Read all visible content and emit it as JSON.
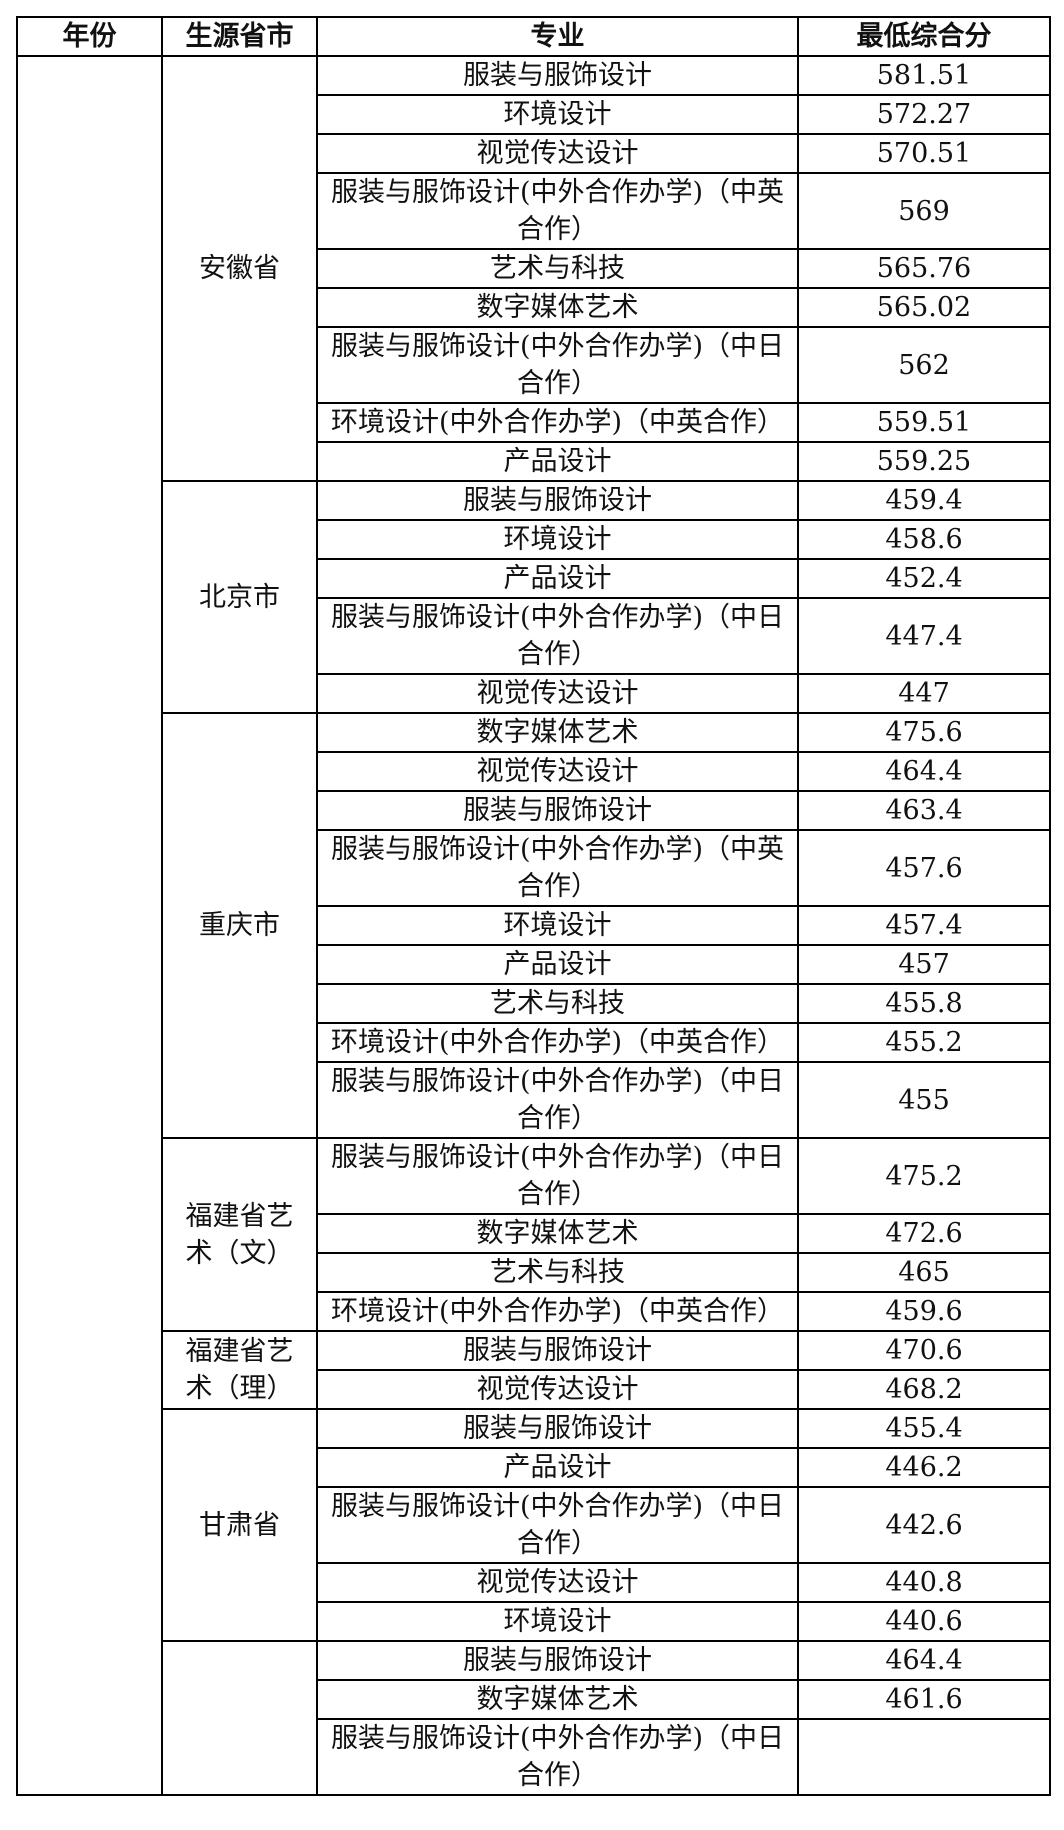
{
  "header": {
    "year": "年份",
    "province": "生源省市",
    "major": "专业",
    "score": "最低综合分"
  },
  "groups": [
    {
      "province": "安徽省",
      "rows": [
        {
          "major": "服装与服饰设计",
          "score": "581.51"
        },
        {
          "major": "环境设计",
          "score": "572.27"
        },
        {
          "major": "视觉传达设计",
          "score": "570.51"
        },
        {
          "major": "服装与服饰设计(中外合作办学)（中英合作）",
          "score": "569"
        },
        {
          "major": "艺术与科技",
          "score": "565.76"
        },
        {
          "major": "数字媒体艺术",
          "score": "565.02"
        },
        {
          "major": "服装与服饰设计(中外合作办学)（中日合作）",
          "score": "562"
        },
        {
          "major": "环境设计(中外合作办学)（中英合作）",
          "score": "559.51"
        },
        {
          "major": "产品设计",
          "score": "559.25"
        }
      ]
    },
    {
      "province": "北京市",
      "rows": [
        {
          "major": "服装与服饰设计",
          "score": "459.4"
        },
        {
          "major": "环境设计",
          "score": "458.6"
        },
        {
          "major": "产品设计",
          "score": "452.4"
        },
        {
          "major": "服装与服饰设计(中外合作办学)（中日合作）",
          "score": "447.4"
        },
        {
          "major": "视觉传达设计",
          "score": "447"
        }
      ]
    },
    {
      "province": "重庆市",
      "rows": [
        {
          "major": "数字媒体艺术",
          "score": "475.6"
        },
        {
          "major": "视觉传达设计",
          "score": "464.4"
        },
        {
          "major": "服装与服饰设计",
          "score": "463.4"
        },
        {
          "major": "服装与服饰设计(中外合作办学)（中英合作）",
          "score": "457.6"
        },
        {
          "major": "环境设计",
          "score": "457.4"
        },
        {
          "major": "产品设计",
          "score": "457"
        },
        {
          "major": "艺术与科技",
          "score": "455.8"
        },
        {
          "major": "环境设计(中外合作办学)（中英合作）",
          "score": "455.2"
        },
        {
          "major": "服装与服饰设计(中外合作办学)（中日合作）",
          "score": "455"
        }
      ]
    },
    {
      "province": "福建省艺术（文）",
      "rows": [
        {
          "major": "服装与服饰设计(中外合作办学)（中日合作）",
          "score": "475.2"
        },
        {
          "major": "数字媒体艺术",
          "score": "472.6"
        },
        {
          "major": "艺术与科技",
          "score": "465"
        },
        {
          "major": "环境设计(中外合作办学)（中英合作）",
          "score": "459.6"
        }
      ]
    },
    {
      "province": "福建省艺术（理）",
      "rows": [
        {
          "major": "服装与服饰设计",
          "score": "470.6"
        },
        {
          "major": "视觉传达设计",
          "score": "468.2"
        }
      ]
    },
    {
      "province": "甘肃省",
      "rows": [
        {
          "major": "服装与服饰设计",
          "score": "455.4"
        },
        {
          "major": "产品设计",
          "score": "446.2"
        },
        {
          "major": "服装与服饰设计(中外合作办学)（中日合作）",
          "score": "442.6"
        },
        {
          "major": "视觉传达设计",
          "score": "440.8"
        },
        {
          "major": "环境设计",
          "score": "440.6"
        }
      ]
    },
    {
      "rows": [
        {
          "major": "服装与服饰设计",
          "score": "464.4"
        },
        {
          "major": "数字媒体艺术",
          "score": "461.6"
        },
        {
          "major": "服装与服饰设计(中外合作办学)（中日合作）"
        }
      ]
    }
  ]
}
